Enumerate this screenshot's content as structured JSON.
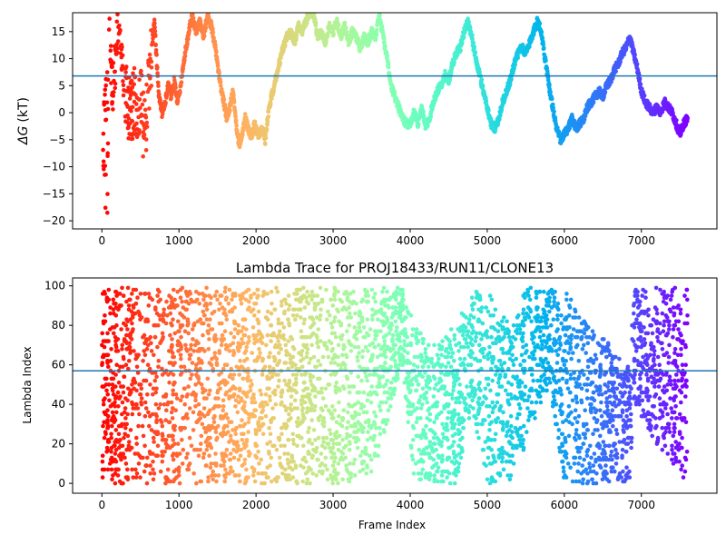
{
  "chart_data": [
    {
      "type": "scatter",
      "title": "",
      "xlabel": "",
      "ylabel": "ΔG (kT)",
      "ylabel_symbol": "ΔG",
      "ylabel_unit": "(kT)",
      "xlim": [
        -380,
        7980
      ],
      "ylim": [
        -21.5,
        18.5
      ],
      "xticks": [
        0,
        1000,
        2000,
        3000,
        4000,
        5000,
        6000,
        7000
      ],
      "yticks": [
        -20,
        -15,
        -10,
        -5,
        0,
        5,
        10,
        15
      ],
      "hline": 6.8,
      "hline_color": "#1f77b4",
      "colormap": "rainbow (early frames red, late frames violet)",
      "anchors": [
        [
          30,
          16
        ],
        [
          35,
          8
        ],
        [
          45,
          -11
        ],
        [
          55,
          12
        ],
        [
          70,
          0
        ],
        [
          90,
          14
        ],
        [
          110,
          13
        ],
        [
          140,
          3
        ],
        [
          170,
          9
        ],
        [
          200,
          15
        ],
        [
          230,
          17
        ],
        [
          260,
          11
        ],
        [
          290,
          6
        ],
        [
          320,
          4
        ],
        [
          350,
          0
        ],
        [
          390,
          1
        ],
        [
          430,
          2
        ],
        [
          470,
          -2
        ],
        [
          510,
          4
        ],
        [
          550,
          -5
        ],
        [
          590,
          2
        ],
        [
          620,
          8
        ],
        [
          650,
          12
        ],
        [
          680,
          17
        ],
        [
          710,
          10
        ],
        [
          740,
          3
        ],
        [
          780,
          0
        ],
        [
          820,
          2
        ],
        [
          860,
          5
        ],
        [
          900,
          3
        ],
        [
          940,
          6
        ],
        [
          980,
          2
        ],
        [
          1010,
          4
        ],
        [
          1050,
          8
        ],
        [
          1090,
          12
        ],
        [
          1130,
          15
        ],
        [
          1170,
          18
        ],
        [
          1220,
          15
        ],
        [
          1270,
          17
        ],
        [
          1320,
          14
        ],
        [
          1370,
          18
        ],
        [
          1420,
          16
        ],
        [
          1460,
          13
        ],
        [
          1500,
          9
        ],
        [
          1540,
          5
        ],
        [
          1580,
          2
        ],
        [
          1620,
          -1
        ],
        [
          1660,
          1
        ],
        [
          1700,
          4
        ],
        [
          1740,
          -2
        ],
        [
          1780,
          -6
        ],
        [
          1820,
          -4
        ],
        [
          1860,
          -1
        ],
        [
          1900,
          -3
        ],
        [
          1940,
          -5
        ],
        [
          1980,
          -2
        ],
        [
          2030,
          -4
        ],
        [
          2080,
          -3
        ],
        [
          2120,
          -5
        ],
        [
          2160,
          0
        ],
        [
          2200,
          3
        ],
        [
          2250,
          6
        ],
        [
          2300,
          9
        ],
        [
          2350,
          12
        ],
        [
          2400,
          14
        ],
        [
          2450,
          15
        ],
        [
          2500,
          13
        ],
        [
          2550,
          16
        ],
        [
          2600,
          15
        ],
        [
          2650,
          17
        ],
        [
          2700,
          19
        ],
        [
          2750,
          18
        ],
        [
          2800,
          14
        ],
        [
          2850,
          15
        ],
        [
          2900,
          13
        ],
        [
          2950,
          16
        ],
        [
          3000,
          15
        ],
        [
          3050,
          17
        ],
        [
          3100,
          14
        ],
        [
          3150,
          16
        ],
        [
          3200,
          13
        ],
        [
          3250,
          15
        ],
        [
          3300,
          14
        ],
        [
          3350,
          12
        ],
        [
          3400,
          14
        ],
        [
          3450,
          13
        ],
        [
          3500,
          15
        ],
        [
          3550,
          14
        ],
        [
          3600,
          18
        ],
        [
          3650,
          14
        ],
        [
          3700,
          10
        ],
        [
          3750,
          5
        ],
        [
          3800,
          3
        ],
        [
          3850,
          1
        ],
        [
          3900,
          -1
        ],
        [
          3950,
          -2
        ],
        [
          4000,
          -2
        ],
        [
          4050,
          0
        ],
        [
          4100,
          -2
        ],
        [
          4150,
          1
        ],
        [
          4200,
          -3
        ],
        [
          4250,
          -1
        ],
        [
          4300,
          2
        ],
        [
          4350,
          4
        ],
        [
          4400,
          5
        ],
        [
          4450,
          7
        ],
        [
          4500,
          6
        ],
        [
          4550,
          9
        ],
        [
          4600,
          11
        ],
        [
          4650,
          12
        ],
        [
          4700,
          15
        ],
        [
          4750,
          17
        ],
        [
          4800,
          14
        ],
        [
          4850,
          10
        ],
        [
          4900,
          7
        ],
        [
          4950,
          4
        ],
        [
          5000,
          1
        ],
        [
          5050,
          -2
        ],
        [
          5100,
          -3
        ],
        [
          5150,
          -1
        ],
        [
          5200,
          2
        ],
        [
          5250,
          4
        ],
        [
          5300,
          6
        ],
        [
          5350,
          9
        ],
        [
          5400,
          11
        ],
        [
          5450,
          12
        ],
        [
          5500,
          11
        ],
        [
          5550,
          13
        ],
        [
          5600,
          15
        ],
        [
          5650,
          17
        ],
        [
          5700,
          15
        ],
        [
          5750,
          10
        ],
        [
          5800,
          5
        ],
        [
          5850,
          1
        ],
        [
          5900,
          -3
        ],
        [
          5950,
          -5
        ],
        [
          6000,
          -4
        ],
        [
          6050,
          -3
        ],
        [
          6100,
          -1
        ],
        [
          6150,
          -3
        ],
        [
          6200,
          -2
        ],
        [
          6250,
          -1
        ],
        [
          6300,
          1
        ],
        [
          6350,
          2
        ],
        [
          6400,
          3
        ],
        [
          6450,
          4
        ],
        [
          6500,
          3
        ],
        [
          6550,
          5
        ],
        [
          6600,
          6
        ],
        [
          6650,
          8
        ],
        [
          6700,
          9
        ],
        [
          6750,
          11
        ],
        [
          6800,
          12
        ],
        [
          6850,
          14
        ],
        [
          6900,
          11
        ],
        [
          6950,
          8
        ],
        [
          7000,
          4
        ],
        [
          7050,
          2
        ],
        [
          7100,
          1
        ],
        [
          7150,
          0
        ],
        [
          7200,
          1
        ],
        [
          7250,
          0
        ],
        [
          7300,
          2
        ],
        [
          7350,
          1
        ],
        [
          7400,
          0
        ],
        [
          7450,
          -2
        ],
        [
          7500,
          -4
        ],
        [
          7550,
          -2
        ],
        [
          7600,
          -1
        ]
      ],
      "scatter_segments": [
        [
          0,
          80,
          -19,
          18
        ],
        [
          90,
          290,
          -2,
          18
        ],
        [
          300,
          660,
          -8,
          18
        ]
      ]
    },
    {
      "type": "scatter",
      "title": "Lambda Trace for PROJ18433/RUN11/CLONE13",
      "xlabel": "Frame Index",
      "ylabel": "Lambda Index",
      "xlim": [
        -380,
        7980
      ],
      "ylim": [
        -5,
        104
      ],
      "xticks": [
        0,
        1000,
        2000,
        3000,
        4000,
        5000,
        6000,
        7000
      ],
      "yticks": [
        0,
        20,
        40,
        60,
        80,
        100
      ],
      "hline": 57,
      "hline_color": "#1f77b4",
      "colormap": "rainbow (early frames red, late frames violet)",
      "x_range": [
        0,
        7600
      ],
      "y_range": [
        0,
        99
      ],
      "density_profile": [
        [
          0,
          0,
          99
        ],
        [
          300,
          0,
          99
        ],
        [
          700,
          0,
          99
        ],
        [
          1200,
          0,
          99
        ],
        [
          1600,
          0,
          99
        ],
        [
          2000,
          0,
          99
        ],
        [
          2300,
          0,
          99
        ],
        [
          3000,
          0,
          99
        ],
        [
          3500,
          0,
          99
        ],
        [
          3700,
          30,
          99
        ],
        [
          3900,
          60,
          99
        ],
        [
          4050,
          0,
          80
        ],
        [
          4300,
          0,
          70
        ],
        [
          4600,
          0,
          80
        ],
        [
          4800,
          40,
          99
        ],
        [
          5000,
          0,
          99
        ],
        [
          5300,
          0,
          80
        ],
        [
          5500,
          20,
          99
        ],
        [
          5800,
          50,
          99
        ],
        [
          6000,
          0,
          99
        ],
        [
          6300,
          0,
          80
        ],
        [
          6600,
          0,
          70
        ],
        [
          6850,
          0,
          60
        ],
        [
          6900,
          40,
          99
        ],
        [
          7200,
          20,
          99
        ],
        [
          7600,
          0,
          99
        ]
      ]
    }
  ]
}
